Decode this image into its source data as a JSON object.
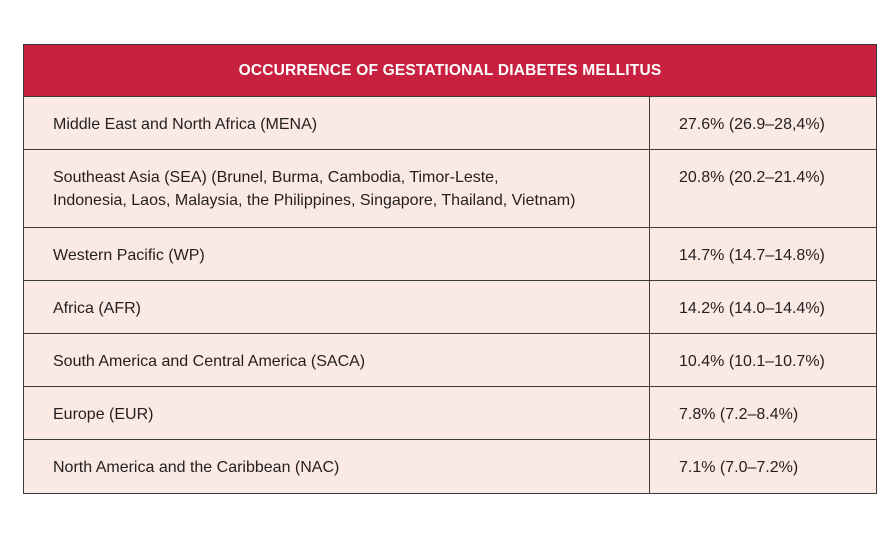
{
  "table": {
    "title": "OCCURRENCE OF GESTATIONAL DIABETES MELLITUS",
    "rows": [
      {
        "region": "Middle East and North Africa (MENA)",
        "value": "27.6% (26.9–28,4%)"
      },
      {
        "region": "Southeast Asia (SEA) (Brunel, Burma, Cambodia, Timor-Leste,",
        "region_line2": "Indonesia, Laos, Malaysia, the Philippines, Singapore, Thailand, Vietnam)",
        "value": "20.8% (20.2–21.4%)"
      },
      {
        "region": "Western Pacific (WP)",
        "value": "14.7% (14.7–14.8%)"
      },
      {
        "region": "Africa (AFR)",
        "value": "14.2% (14.0–14.4%)"
      },
      {
        "region": "South America and Central America (SACA)",
        "value": "10.4% (10.1–10.7%)"
      },
      {
        "region": "Europe (EUR)",
        "value": "7.8% (7.2–8.4%)"
      },
      {
        "region": "North America and the Caribbean (NAC)",
        "value": "7.1% (7.0–7.2%)"
      }
    ]
  },
  "colors": {
    "header_background": "#c8203f",
    "row_background": "#fbe9e3",
    "border": "#3a3a3a"
  }
}
